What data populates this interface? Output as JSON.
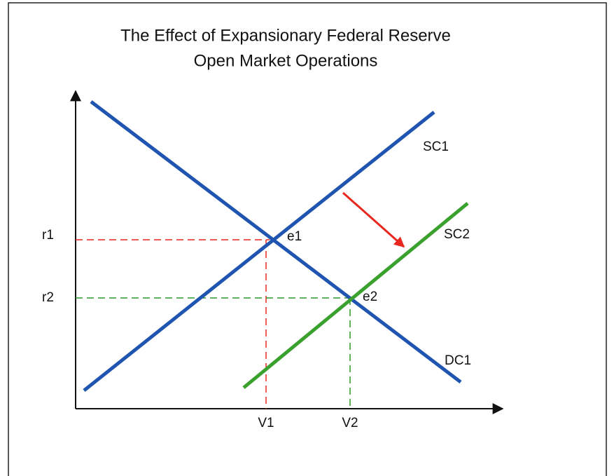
{
  "title": [
    "The Effect of Expansionary Federal Reserve",
    "Open Market Operations"
  ],
  "y_labels": [
    "r1",
    "r2"
  ],
  "x_labels": [
    "V1",
    "V2"
  ],
  "points": [
    "e1",
    "e2"
  ],
  "curves": [
    "SC1",
    "SC2",
    "DC1"
  ]
}
